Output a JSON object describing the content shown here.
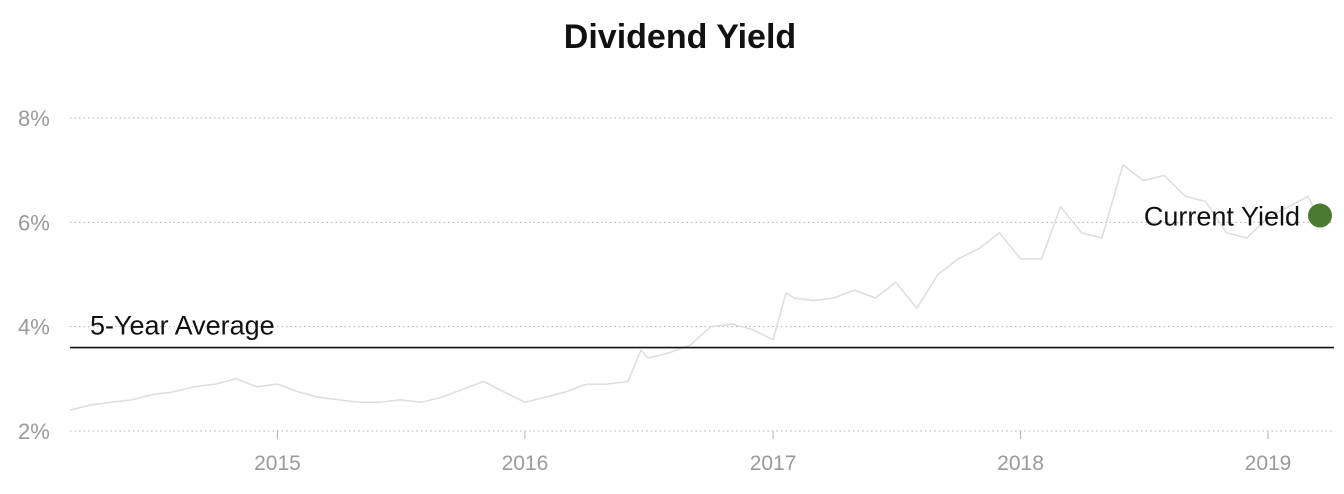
{
  "chart_data": {
    "type": "line",
    "title": "Dividend Yield",
    "xlabel": "",
    "ylabel": "",
    "x_ticks": [
      "2015",
      "2016",
      "2017",
      "2018",
      "2019"
    ],
    "y_ticks": [
      "2%",
      "4%",
      "6%",
      "8%"
    ],
    "ylim": [
      2,
      8
    ],
    "xlim": [
      "2014-03-01",
      "2019-03-20"
    ],
    "grid": true,
    "colors": {
      "line": "#dddddd",
      "average": "#111111",
      "current": "#4a7a32",
      "grid": "#b0b0b0",
      "ticks": "#9a9a9a"
    },
    "average": {
      "label": "5-Year Average",
      "value": 3.6
    },
    "current": {
      "label": "Current Yield",
      "date": "2019-03-15",
      "value": 6.13
    },
    "series": [
      {
        "x": [
          "2014-03-01",
          "2014-04-01",
          "2014-05-01",
          "2014-06-01",
          "2014-07-01",
          "2014-08-01",
          "2014-09-01",
          "2014-10-01",
          "2014-11-01",
          "2014-12-01",
          "2015-01-01",
          "2015-02-01",
          "2015-03-01",
          "2015-04-01",
          "2015-05-01",
          "2015-06-01",
          "2015-07-01",
          "2015-08-01",
          "2015-09-01",
          "2015-10-01",
          "2015-11-01",
          "2015-12-01",
          "2016-01-01",
          "2016-02-01",
          "2016-03-01",
          "2016-04-01",
          "2016-05-01",
          "2016-06-01",
          "2016-06-20",
          "2016-07-01",
          "2016-08-01",
          "2016-09-01",
          "2016-10-01",
          "2016-11-01",
          "2016-12-01",
          "2017-01-01",
          "2017-01-20",
          "2017-02-01",
          "2017-03-01",
          "2017-04-01",
          "2017-05-01",
          "2017-06-01",
          "2017-07-01",
          "2017-08-01",
          "2017-09-01",
          "2017-10-01",
          "2017-11-01",
          "2017-12-01",
          "2018-01-01",
          "2018-02-01",
          "2018-03-01",
          "2018-04-01",
          "2018-05-01",
          "2018-06-01",
          "2018-07-01",
          "2018-08-01",
          "2018-09-01",
          "2018-10-01",
          "2018-11-01",
          "2018-12-01",
          "2019-01-01",
          "2019-02-01",
          "2019-03-01",
          "2019-03-15"
        ],
        "y": [
          2.4,
          2.5,
          2.55,
          2.6,
          2.7,
          2.75,
          2.85,
          2.9,
          3.0,
          2.85,
          2.9,
          2.75,
          2.65,
          2.6,
          2.55,
          2.55,
          2.6,
          2.55,
          2.65,
          2.8,
          2.95,
          2.75,
          2.55,
          2.65,
          2.75,
          2.9,
          2.9,
          2.95,
          3.55,
          3.4,
          3.5,
          3.65,
          4.0,
          4.05,
          3.95,
          3.75,
          4.65,
          4.55,
          4.5,
          4.55,
          4.7,
          4.55,
          4.85,
          4.35,
          5.0,
          5.3,
          5.5,
          5.8,
          5.3,
          5.3,
          6.3,
          5.8,
          5.7,
          7.1,
          6.8,
          6.9,
          6.5,
          6.4,
          5.8,
          5.7,
          6.1,
          6.3,
          6.5,
          6.13
        ]
      }
    ]
  }
}
